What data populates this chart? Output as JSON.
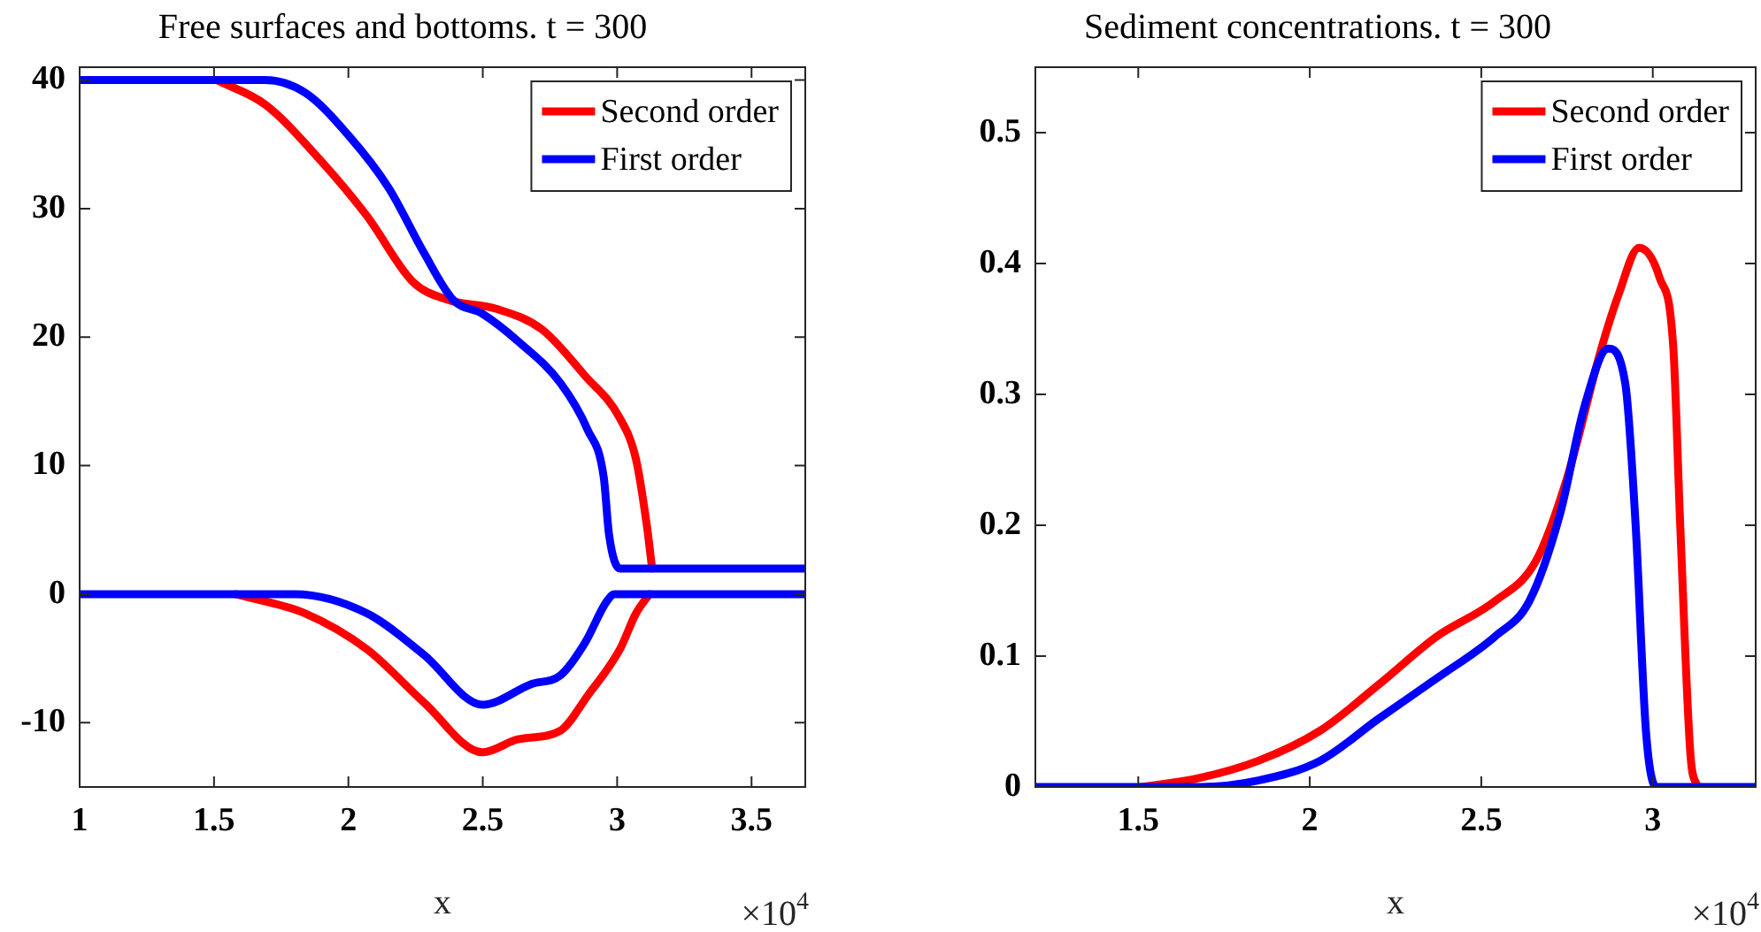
{
  "chart_data": [
    {
      "type": "line",
      "title": "Free surfaces and bottoms. t = 300",
      "xlabel": "x",
      "annotations": [
        "×10$^{4}$"
      ],
      "legend": "top right",
      "grid": false,
      "marker": "none",
      "line_style": "solid",
      "xlim": [
        1,
        3.7
      ],
      "xticks": [
        1,
        1.5,
        2,
        2.5,
        3,
        3.5
      ],
      "ylim": [
        -15,
        41
      ],
      "yticks": [
        -10,
        0,
        10,
        20,
        30,
        40
      ],
      "series": [
        {
          "name": "Second order",
          "color": "#ff0000",
          "x": [
            1.51,
            1.69,
            1.89,
            2.07,
            2.24,
            2.37,
            2.55,
            2.72,
            2.88,
            3.01,
            3.07,
            3.11,
            3.13
          ],
          "values": [
            40,
            38.1,
            33.9,
            29.4,
            24.3,
            22.9,
            22.2,
            20.6,
            17,
            13.7,
            10.5,
            5.4,
            2
          ]
        },
        {
          "name": "First order",
          "color": "#0000ff",
          "x": [
            1,
            1.69,
            1.84,
            2,
            2.15,
            2.28,
            2.39,
            2.5,
            2.63,
            2.79,
            2.89,
            2.95,
            2.97,
            3.01,
            3.7
          ],
          "values": [
            40,
            40,
            39,
            35.7,
            31.6,
            26.6,
            22.9,
            21.8,
            19.7,
            16.4,
            12.8,
            9.1,
            4.6,
            2,
            2
          ]
        },
        {
          "color": "#ff0000",
          "x": [
            1.58,
            1.84,
            2.07,
            2.28,
            2.5,
            2.63,
            2.79,
            2.89,
            3.01,
            3.07,
            3.12
          ],
          "values": [
            0,
            -1.5,
            -4.3,
            -8.4,
            -12.3,
            -11.3,
            -10.6,
            -7.9,
            -4.3,
            -1.5,
            0
          ]
        },
        {
          "color": "#0000ff",
          "x": [
            1,
            1.8,
            2.07,
            2.28,
            2.5,
            2.68,
            2.79,
            2.88,
            2.96,
            2.99,
            3.7
          ],
          "values": [
            0,
            0,
            -1.5,
            -4.7,
            -8.6,
            -7,
            -6.3,
            -3.8,
            -0.6,
            0,
            0
          ]
        }
      ]
    },
    {
      "type": "line",
      "title": "Sediment concentrations. t = 300",
      "xlabel": "x",
      "annotations": [
        "×10$^{4}$"
      ],
      "legend": "top right",
      "grid": false,
      "marker": "none",
      "line_style": "solid",
      "xlim": [
        1.2,
        3.3
      ],
      "xticks": [
        1.5,
        2,
        2.5,
        3
      ],
      "ylim": [
        0,
        0.55
      ],
      "yticks": [
        0,
        0.1,
        0.2,
        0.3,
        0.4,
        0.5
      ],
      "series": [
        {
          "name": "Second order",
          "color": "#ff0000",
          "x": [
            1.51,
            1.68,
            1.85,
            2.03,
            2.2,
            2.37,
            2.54,
            2.66,
            2.75,
            2.85,
            2.9,
            2.96,
            3.02,
            3.06,
            3.08,
            3.11,
            3.13
          ],
          "values": [
            0,
            0.007,
            0.02,
            0.043,
            0.078,
            0.115,
            0.142,
            0.173,
            0.236,
            0.335,
            0.376,
            0.412,
            0.389,
            0.335,
            0.2,
            0.024,
            0
          ]
        },
        {
          "name": "First order",
          "color": "#0000ff",
          "x": [
            1.2,
            1.68,
            1.85,
            2.03,
            2.2,
            2.37,
            2.54,
            2.64,
            2.73,
            2.8,
            2.87,
            2.92,
            2.95,
            2.98,
            3.01,
            3.3
          ],
          "values": [
            0,
            0,
            0.005,
            0.02,
            0.052,
            0.083,
            0.115,
            0.142,
            0.209,
            0.29,
            0.335,
            0.308,
            0.2,
            0.043,
            0,
            0
          ]
        }
      ]
    }
  ]
}
